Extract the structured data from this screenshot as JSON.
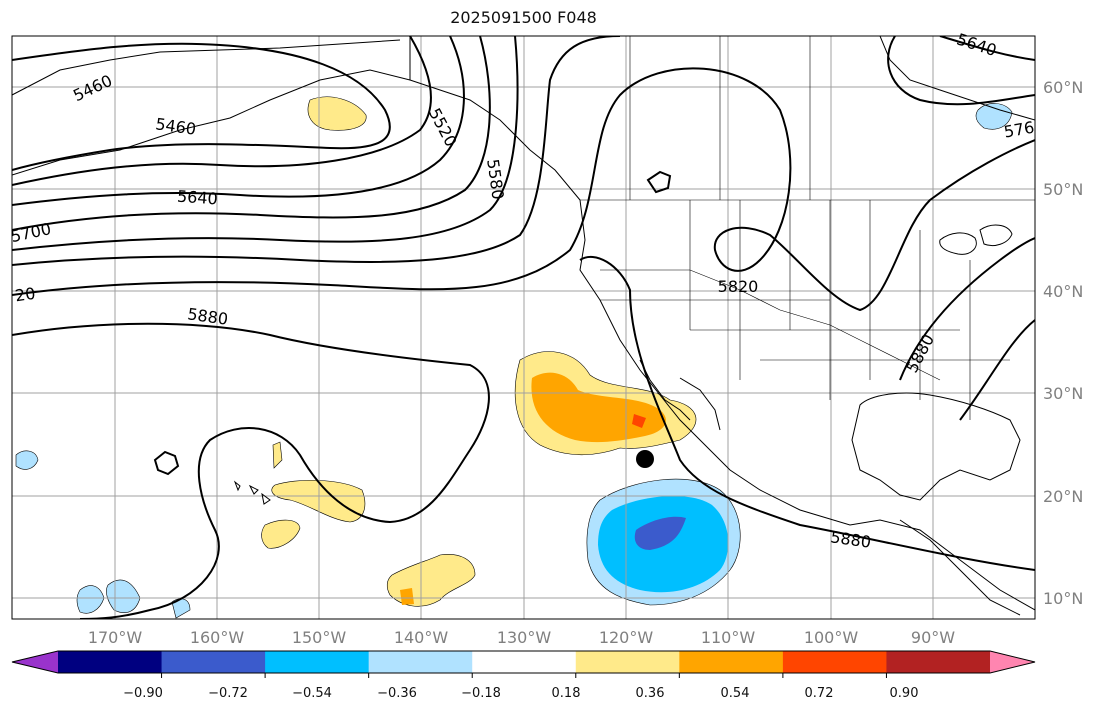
{
  "title": "2025091500 F048",
  "map": {
    "lon_range": [
      -180,
      -80
    ],
    "lat_range": [
      8,
      65
    ],
    "grid": true,
    "lon_ticks": [
      "170°W",
      "160°W",
      "150°W",
      "140°W",
      "130°W",
      "120°W",
      "110°W",
      "100°W",
      "90°W"
    ],
    "lat_ticks": [
      "10°N",
      "20°N",
      "30°N",
      "40°N",
      "50°N",
      "60°N"
    ],
    "contour_labels": [
      "5460",
      "5460",
      "5520",
      "5580",
      "5640",
      "5700",
      "20",
      "5880",
      "5820",
      "5880",
      "5880",
      "5640",
      "576"
    ],
    "marker": {
      "lon": -118,
      "lat": 23.5,
      "color": "#000000"
    }
  },
  "colorbar": {
    "ticks": [
      "−0.90",
      "−0.72",
      "−0.54",
      "−0.36",
      "−0.18",
      "0.18",
      "0.36",
      "0.54",
      "0.72",
      "0.90"
    ],
    "colors": [
      "#9933cc",
      "#000080",
      "#3b5bcc",
      "#00bfff",
      "#b0e2ff",
      "#ffffff",
      "#ffea8a",
      "#ffa500",
      "#ff4500",
      "#b22222",
      "#ff85b0"
    ]
  }
}
